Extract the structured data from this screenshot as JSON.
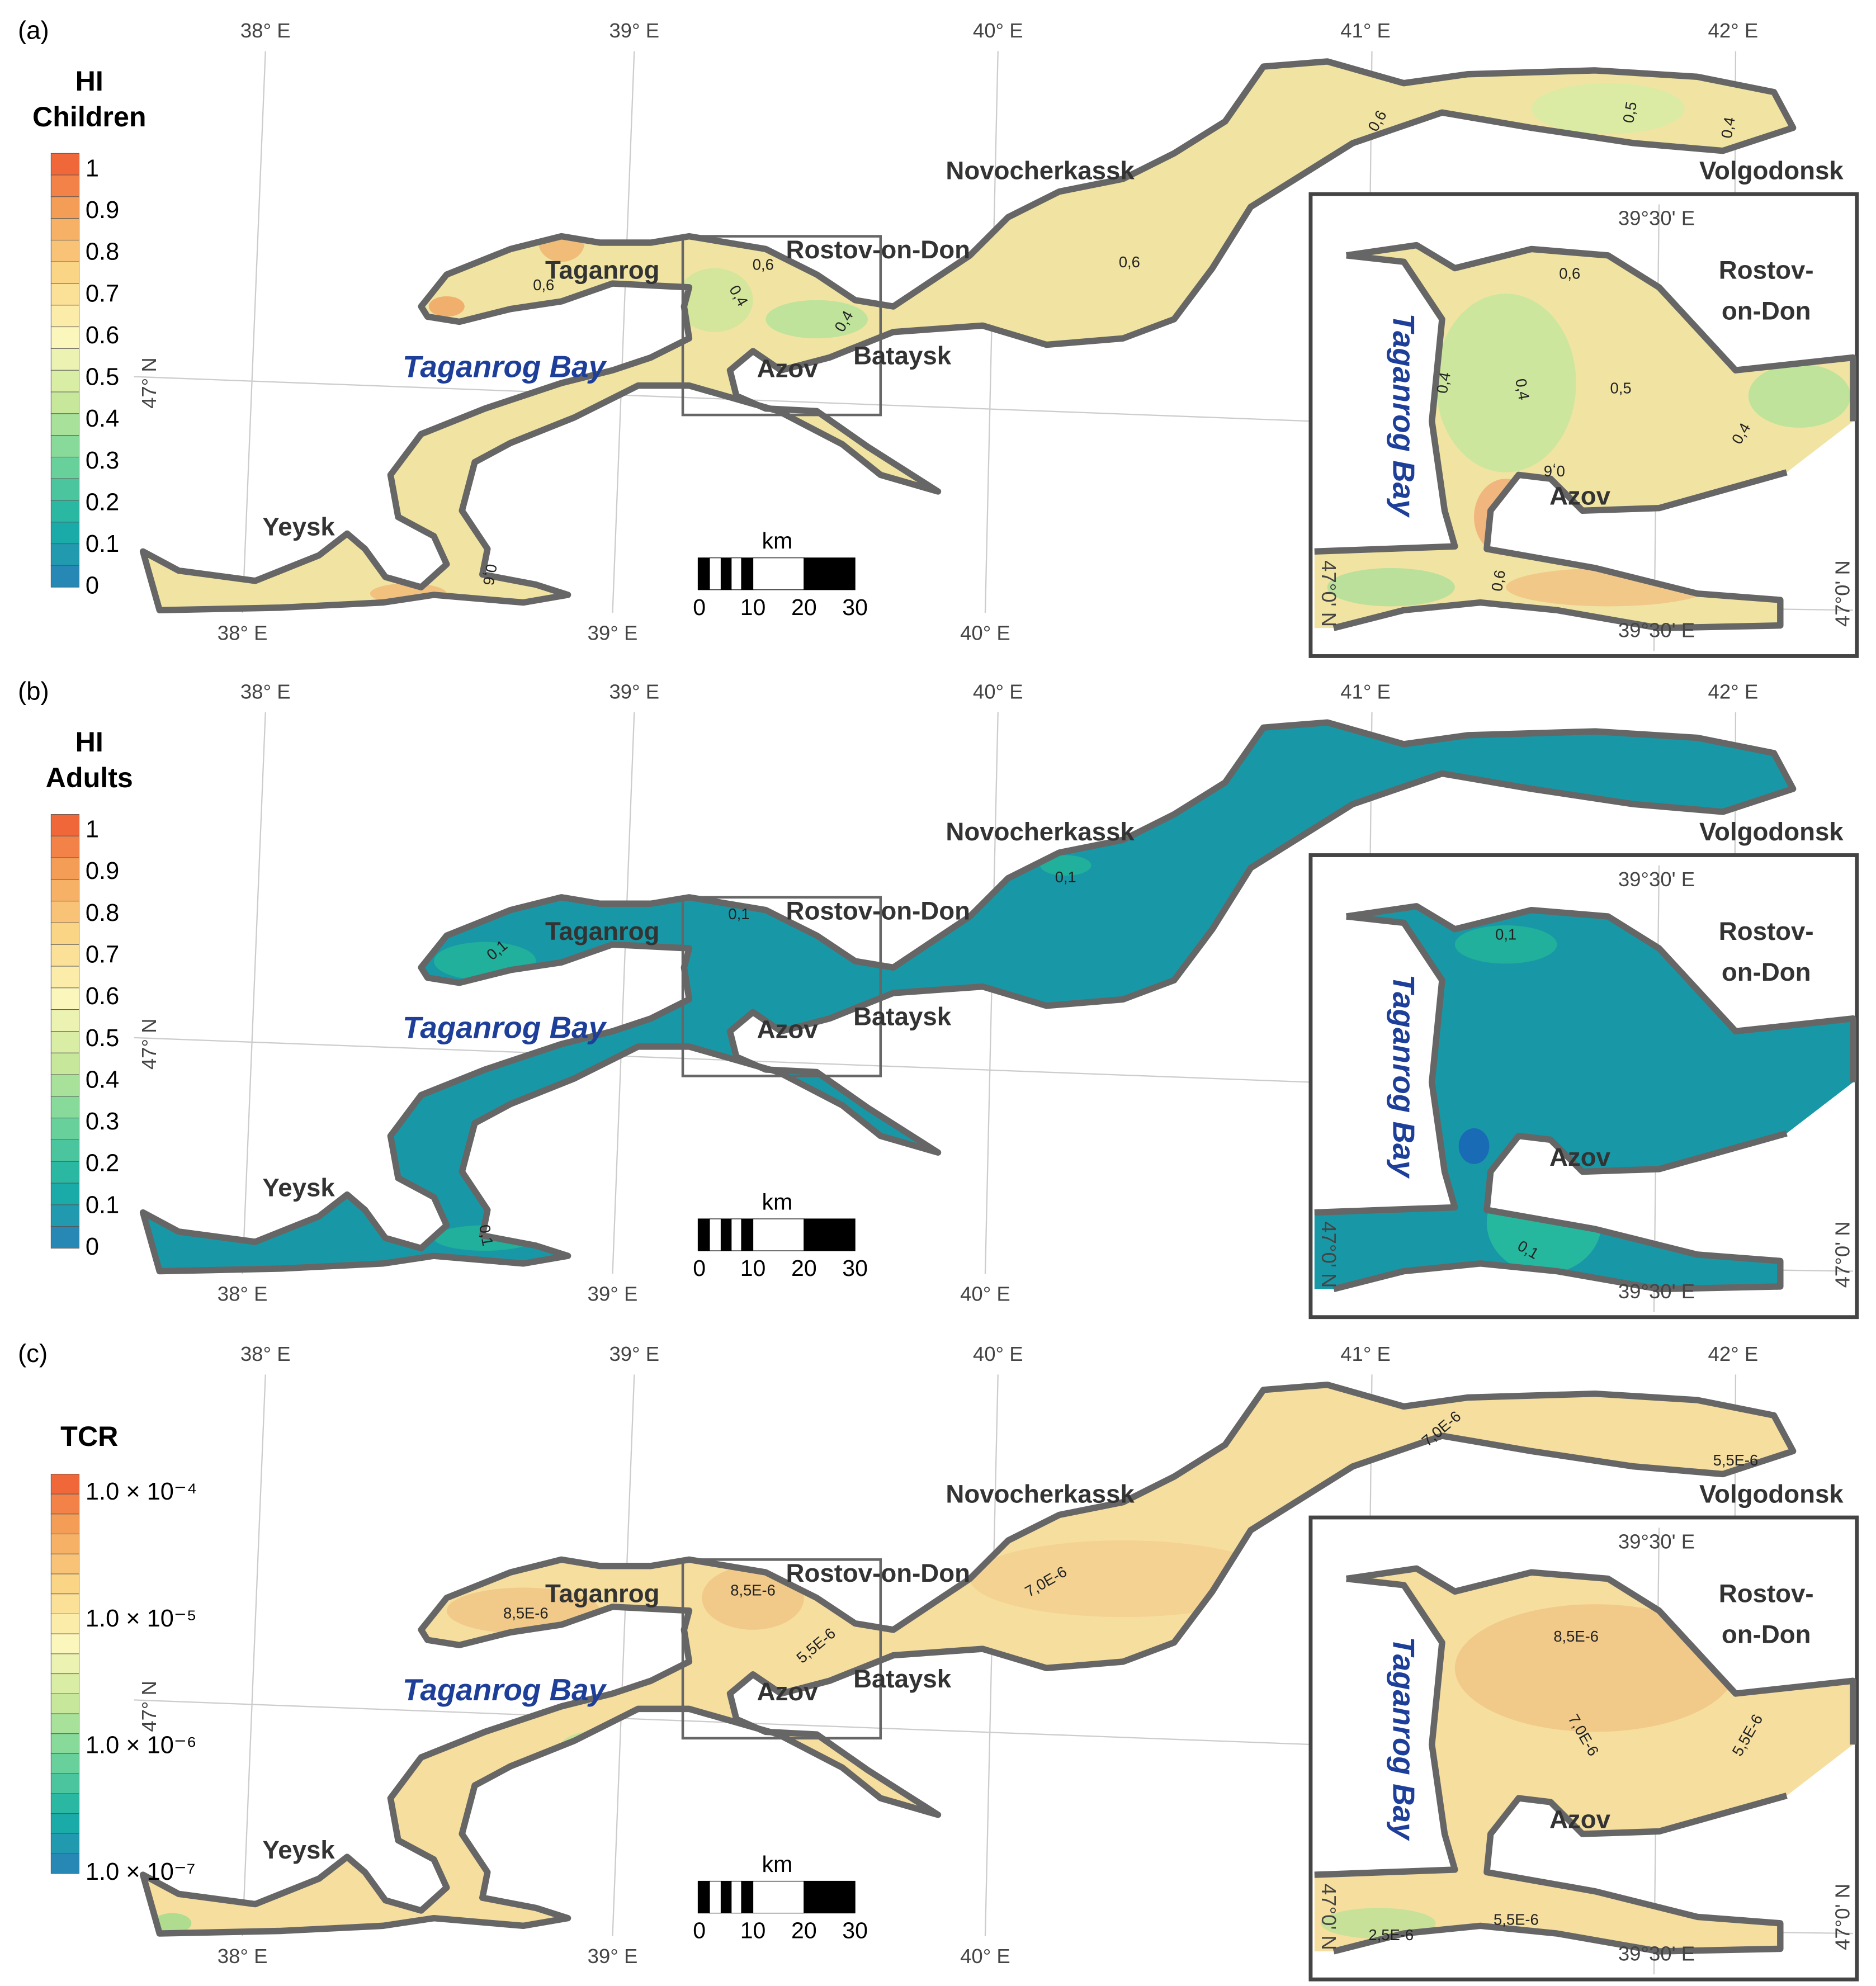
{
  "panels": [
    {
      "label": "(a)",
      "legend": {
        "title": [
          "HI",
          "Children"
        ],
        "ticks": [
          1,
          0.9,
          0.8,
          0.7,
          0.6,
          0.5,
          0.4,
          0.3,
          0.2,
          0.1,
          0
        ]
      },
      "contour_labels": [
        "0,6",
        "0,6",
        "0,4",
        "0,4",
        "0,6",
        "0,6",
        "0,5",
        "0,4",
        "0,6"
      ],
      "inset_contour_labels": [
        "0,6",
        "0,5",
        "0,4",
        "0,4",
        "0,4",
        "0,6",
        "0,6"
      ]
    },
    {
      "label": "(b)",
      "legend": {
        "title": [
          "HI",
          "Adults"
        ],
        "ticks": [
          1,
          0.9,
          0.8,
          0.7,
          0.6,
          0.5,
          0.4,
          0.3,
          0.2,
          0.1,
          0
        ]
      },
      "contour_labels": [
        "0,1",
        "0,1",
        "0,1",
        "0,1"
      ],
      "inset_contour_labels": [
        "0,1",
        "0,1"
      ]
    },
    {
      "label": "(c)",
      "legend": {
        "title": [
          "TCR"
        ],
        "ticks": [
          "1.0 × 10⁻⁴",
          "1.0 × 10⁻⁵",
          "1.0 × 10⁻⁶",
          "1.0 × 10⁻⁷"
        ]
      },
      "contour_labels": [
        "8,5E-6",
        "8,5E-6",
        "5,5E-6",
        "7,0E-6",
        "7,0E-6",
        "5,5E-6"
      ],
      "inset_contour_labels": [
        "8,5E-6",
        "7,0E-6",
        "5,5E-6",
        "5,5E-6",
        "2,5E-6"
      ]
    }
  ],
  "map": {
    "lon_ticks": [
      "38° E",
      "39° E",
      "40° E",
      "41° E",
      "42° E"
    ],
    "lat_tick": "47° N",
    "places": {
      "taganrog": "Taganrog",
      "rostov": "Rostov-on-Don",
      "novocherkassk": "Novocherkassk",
      "volgodonsk": "Volgodonsk",
      "azov": "Azov",
      "bataysk": "Bataysk",
      "yeysk": "Yeysk"
    },
    "bay": "Taganrog Bay",
    "inset": {
      "lon": "39°30' E",
      "lat": "47°0' N",
      "rostov": [
        "Rostov-",
        "on-Don"
      ]
    },
    "scale": {
      "unit": "km",
      "ticks": [
        0,
        10,
        20,
        30
      ]
    }
  }
}
